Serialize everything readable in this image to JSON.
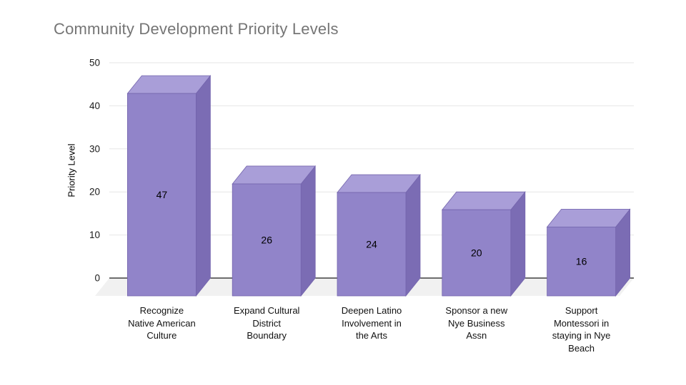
{
  "chart_data": {
    "type": "bar",
    "style": "3d",
    "title": "Community Development Priority Levels",
    "xlabel": "",
    "ylabel": "Priority Level",
    "categories": [
      "Recognize\nNative American\nCulture",
      "Expand Cultural\nDistrict\nBoundary",
      "Deepen Latino\nInvolvement in\nthe Arts",
      "Sponsor a new\nNye Business\nAssn",
      "Support\nMontessori in\nstaying in Nye\nBeach"
    ],
    "values": [
      47,
      26,
      24,
      20,
      16
    ],
    "ylim": [
      0,
      50
    ],
    "yticks": [
      0,
      10,
      20,
      30,
      40,
      50
    ],
    "grid": true,
    "legend": "none",
    "colors": {
      "bar_front": "#9184c9",
      "bar_top": "#a99ed8",
      "bar_side": "#7b6cb4",
      "bar_edge": "#7465ad",
      "grid": "#e6e6e6",
      "axis": "#1a1a1a",
      "floor": "#f1f1f1",
      "title": "#757575",
      "tick_label": "#1a1a1a",
      "value_label": "#000000",
      "category_label": "#111111"
    }
  }
}
